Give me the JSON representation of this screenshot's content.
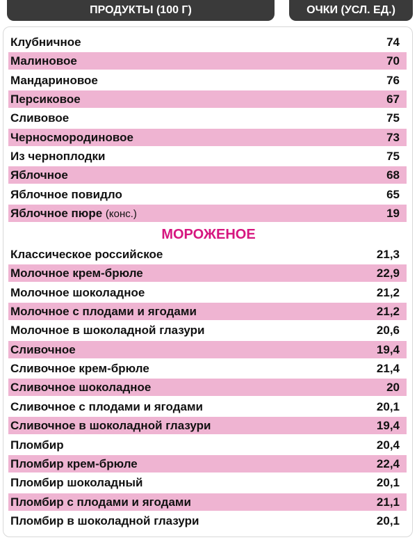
{
  "header": {
    "columns": [
      "ПРОДУКТЫ (100 Г)",
      "ОЧКИ (УСЛ. ЕД.)"
    ]
  },
  "table": {
    "rows": [
      [
        "Клубничное",
        "74"
      ],
      [
        "Малиновое",
        "70"
      ],
      [
        "Мандариновое",
        "76"
      ],
      [
        "Персиковое",
        "67"
      ],
      [
        "Сливовое",
        "75"
      ],
      [
        "Черносмородиновое",
        "73"
      ],
      [
        "Из черноплодки",
        "75"
      ],
      [
        "Яблочное",
        "68"
      ],
      [
        "Яблочное повидло",
        "65"
      ],
      [
        "Яблочное пюре",
        "19",
        "(конс.)"
      ]
    ],
    "section_title": "МОРОЖЕНОЕ",
    "section_rows": [
      [
        "Классическое российское",
        "21,3"
      ],
      [
        "Молочное крем-брюле",
        "22,9"
      ],
      [
        "Молочное шоколадное",
        "21,2"
      ],
      [
        "Молочное с плодами и ягодами",
        "21,2"
      ],
      [
        "Молочное в шоколадной глазури",
        "20,6"
      ],
      [
        "Сливочное",
        "19,4"
      ],
      [
        "Сливочное крем-брюле",
        "21,4"
      ],
      [
        "Сливочное шоколадное",
        "20"
      ],
      [
        "Сливочное с плодами и ягодами",
        "20,1"
      ],
      [
        "Сливочное в шоколадной глазури",
        "19,4"
      ],
      [
        "Пломбир",
        "20,4"
      ],
      [
        "Пломбир крем-брюле",
        "22,4"
      ],
      [
        "Пломбир шоколадный",
        "20,1"
      ],
      [
        "Пломбир с плодами и ягодами",
        "21,1"
      ],
      [
        "Пломбир в шоколадной глазури",
        "20,1"
      ]
    ]
  }
}
